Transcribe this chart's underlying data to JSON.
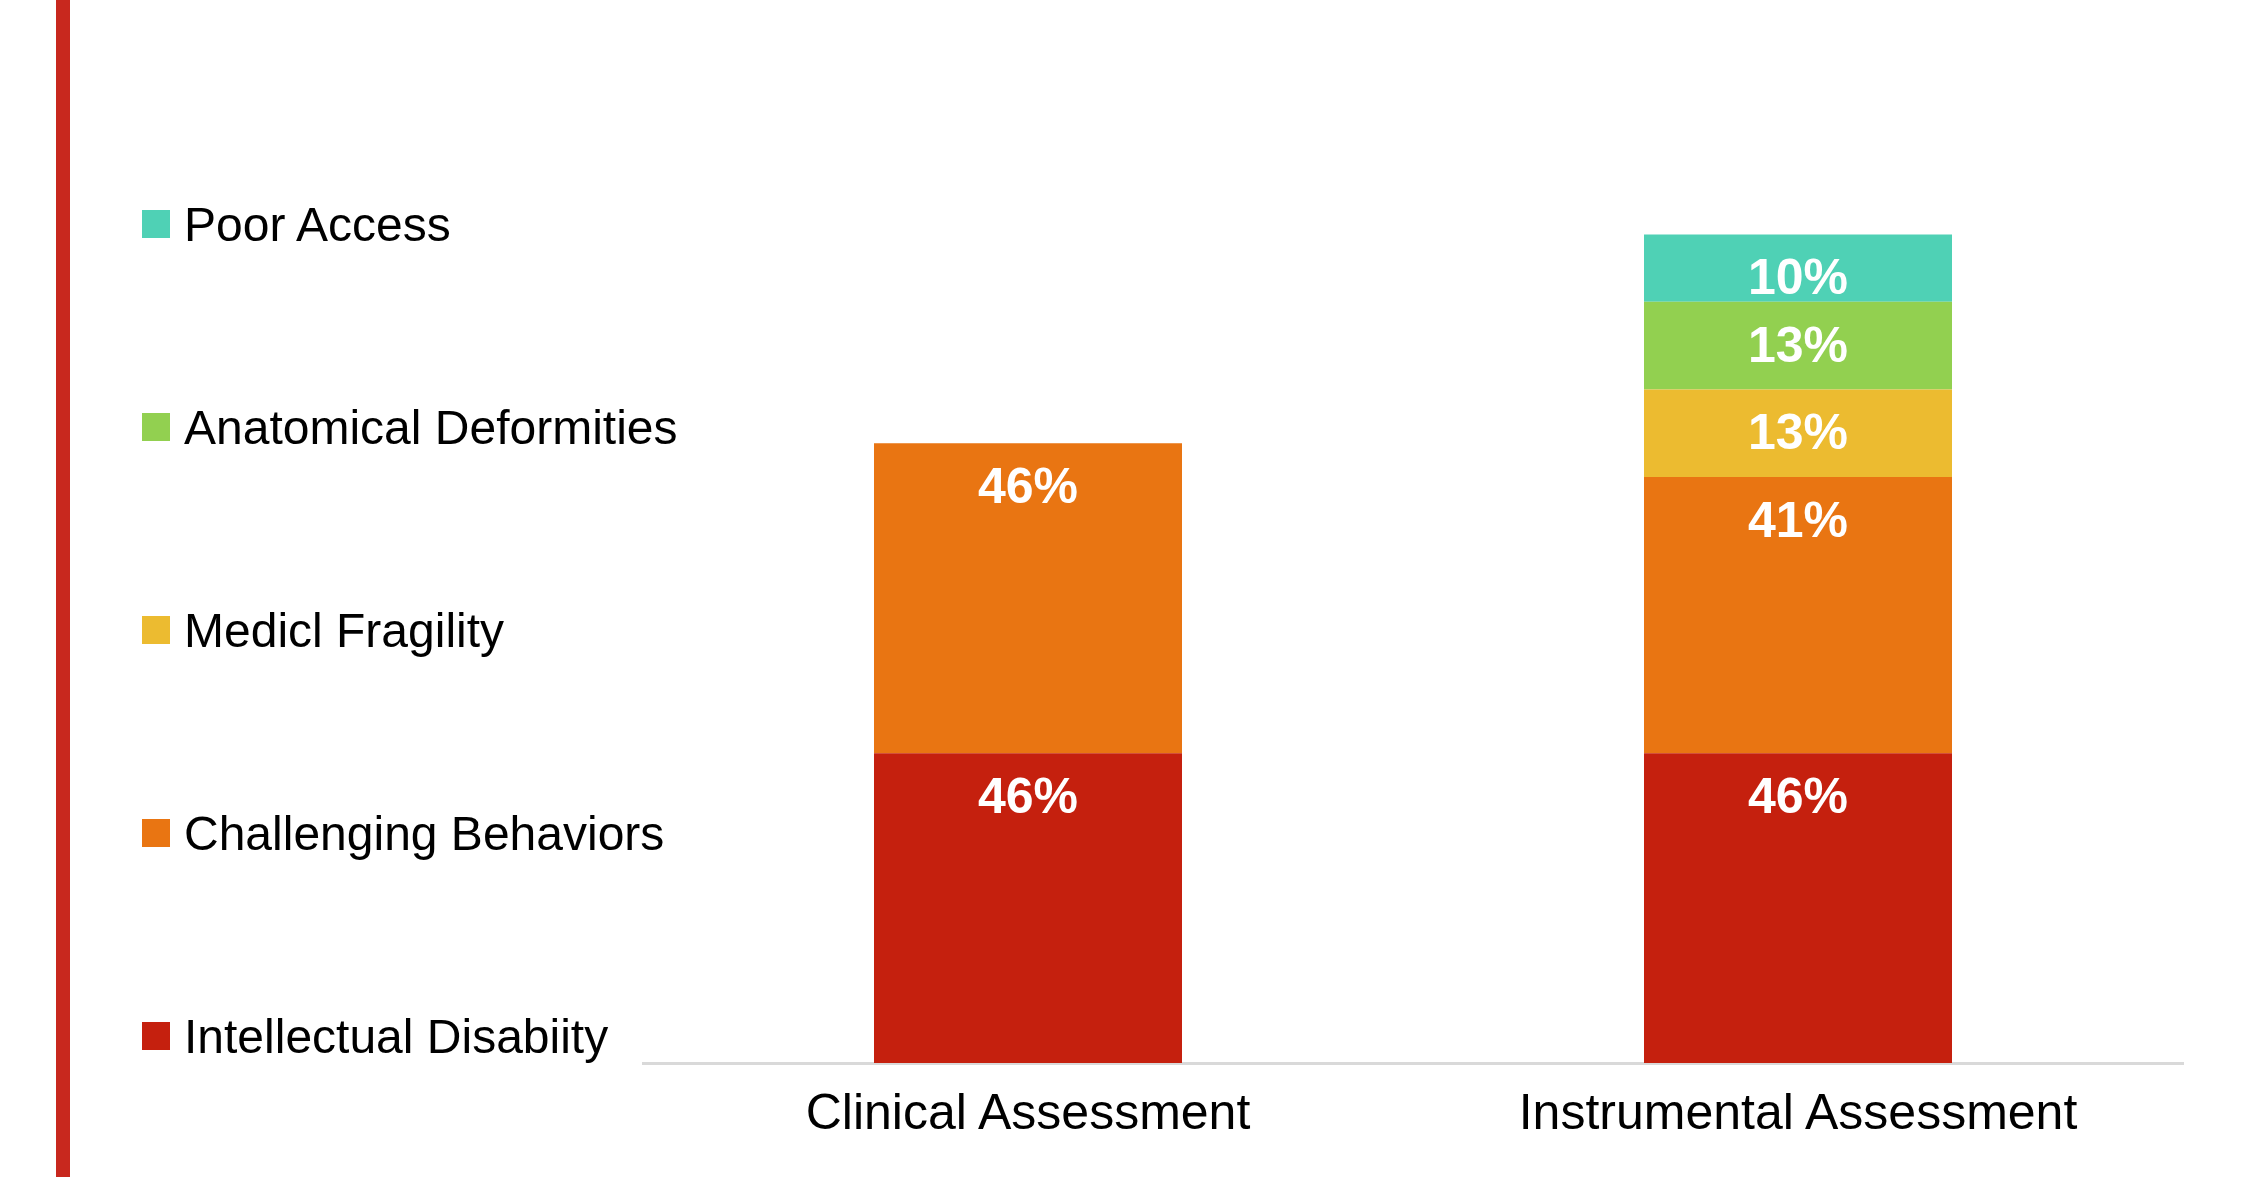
{
  "chart_data": {
    "type": "bar",
    "stacked": true,
    "categories": [
      "Clinical Assessment",
      "Instrumental Assessment"
    ],
    "series": [
      {
        "name": "Intellectual Disabiity",
        "color": "#c5200e",
        "values": [
          46,
          46
        ],
        "value_labels": [
          "46%",
          "46%"
        ]
      },
      {
        "name": "Challenging Behaviors",
        "color": "#e97512",
        "values": [
          46,
          41
        ],
        "value_labels": [
          "46%",
          "41%"
        ]
      },
      {
        "name": "Medicl Fragility",
        "color": "#ecbb30",
        "values": [
          null,
          13
        ],
        "value_labels": [
          null,
          "13%"
        ]
      },
      {
        "name": "Anatomical Deformities",
        "color": "#92d050",
        "values": [
          null,
          13
        ],
        "value_labels": [
          null,
          "13%"
        ]
      },
      {
        "name": "Poor Access",
        "color": "#4fd1b5",
        "values": [
          null,
          10
        ],
        "value_labels": [
          null,
          "10%"
        ]
      }
    ],
    "legend": "left",
    "grid": false
  }
}
